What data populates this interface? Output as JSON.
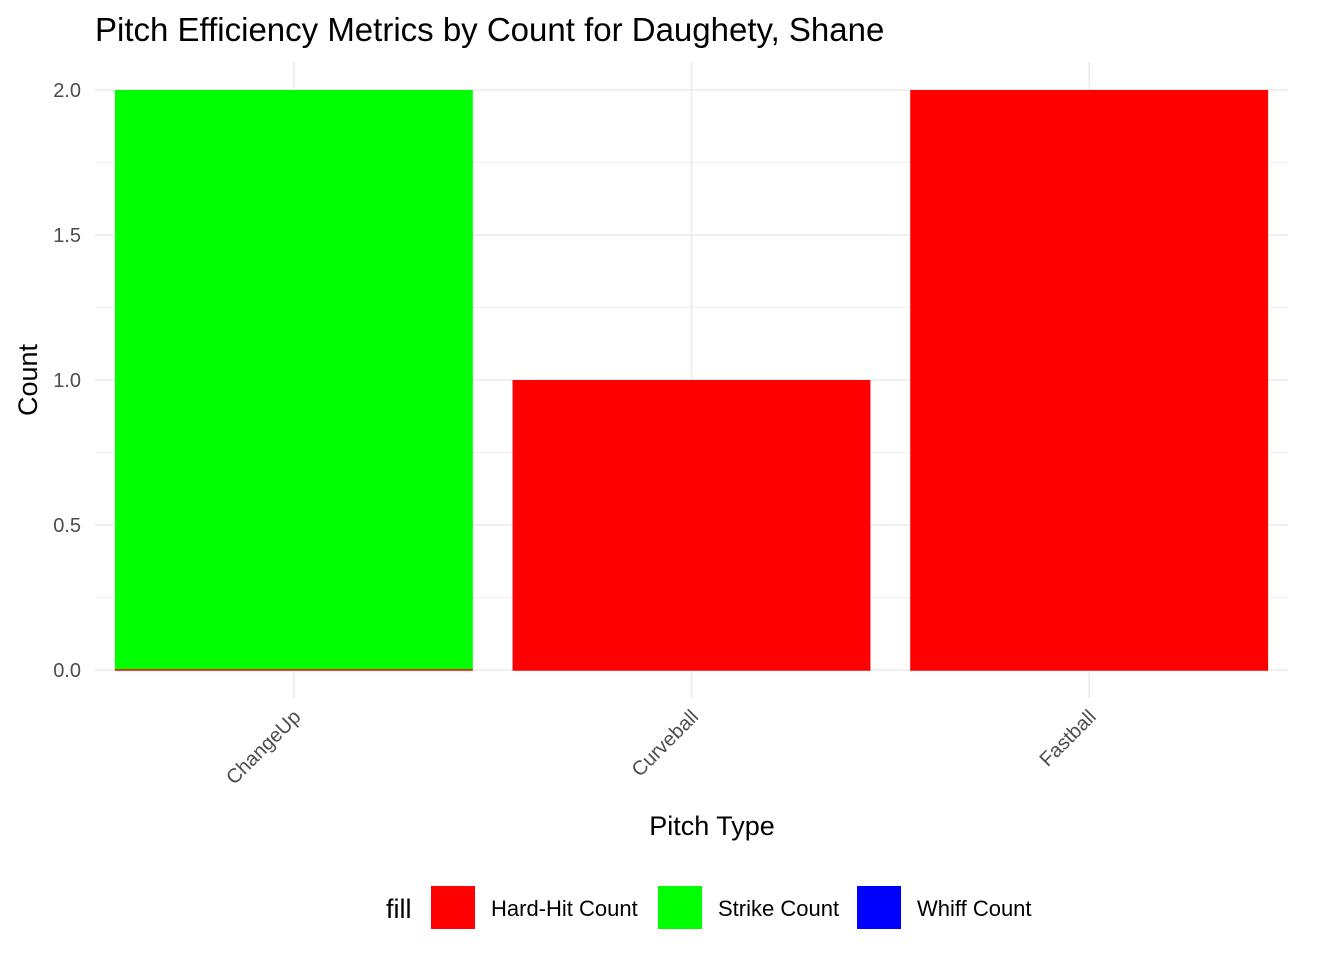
{
  "chart_data": {
    "type": "bar",
    "title": "Pitch Efficiency Metrics by Count for Daughety, Shane",
    "xlabel": "Pitch Type",
    "ylabel": "Count",
    "categories": [
      "ChangeUp",
      "Curveball",
      "Fastball"
    ],
    "ylim": [
      0,
      2
    ],
    "yticks": [
      "0.0",
      "0.5",
      "1.0",
      "1.5",
      "2.0"
    ],
    "ytick_values": [
      0,
      0.5,
      1.0,
      1.5,
      2.0
    ],
    "grid": true,
    "stacked": true,
    "legend": {
      "title": "fill",
      "position": "bottom"
    },
    "series": [
      {
        "name": "Hard-Hit Count",
        "color": "#ff0000",
        "values": [
          0,
          1,
          2
        ]
      },
      {
        "name": "Strike Count",
        "color": "#00ff00",
        "values": [
          2,
          0,
          0
        ]
      },
      {
        "name": "Whiff Count",
        "color": "#0000ff",
        "values": [
          0,
          0,
          0
        ]
      }
    ]
  }
}
